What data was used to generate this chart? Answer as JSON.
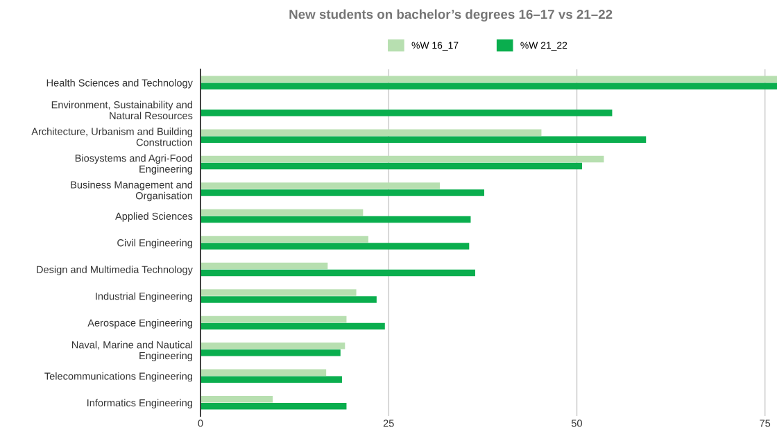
{
  "chart_data": {
    "type": "bar",
    "orientation": "horizontal",
    "title": "New students on bachelor’s degrees 16–17 vs 21–22",
    "categories": [
      "Health Sciences and Technology",
      "Environment, Sustainability and\nNatural Resources",
      "Architecture, Urbanism and Building\nConstruction",
      "Biosystems and Agri-Food\nEngineering",
      "Business Management and\nOrganisation",
      "Applied Sciences",
      "Civil Engineering",
      "Design and Multimedia Technology",
      "Industrial Engineering",
      "Aerospace Engineering",
      "Naval, Marine and Nautical\nEngineering",
      "Telecommunications Engineering",
      "Informatics Engineering"
    ],
    "series": [
      {
        "name": "%W 16_17",
        "color": "#b7dfb0",
        "values": [
          76.6,
          null,
          45.3,
          53.6,
          31.8,
          21.6,
          22.3,
          16.9,
          20.7,
          19.4,
          19.2,
          16.7,
          9.6
        ]
      },
      {
        "name": "%W 21_22",
        "color": "#0aae4e",
        "values": [
          76.6,
          54.7,
          59.2,
          50.7,
          37.7,
          35.9,
          35.7,
          36.5,
          23.4,
          24.5,
          18.6,
          18.8,
          19.4
        ]
      }
    ],
    "xlim": [
      0,
      76.6
    ],
    "xticks": [
      0,
      25,
      50,
      75
    ],
    "grid": "x",
    "legend": "top"
  }
}
